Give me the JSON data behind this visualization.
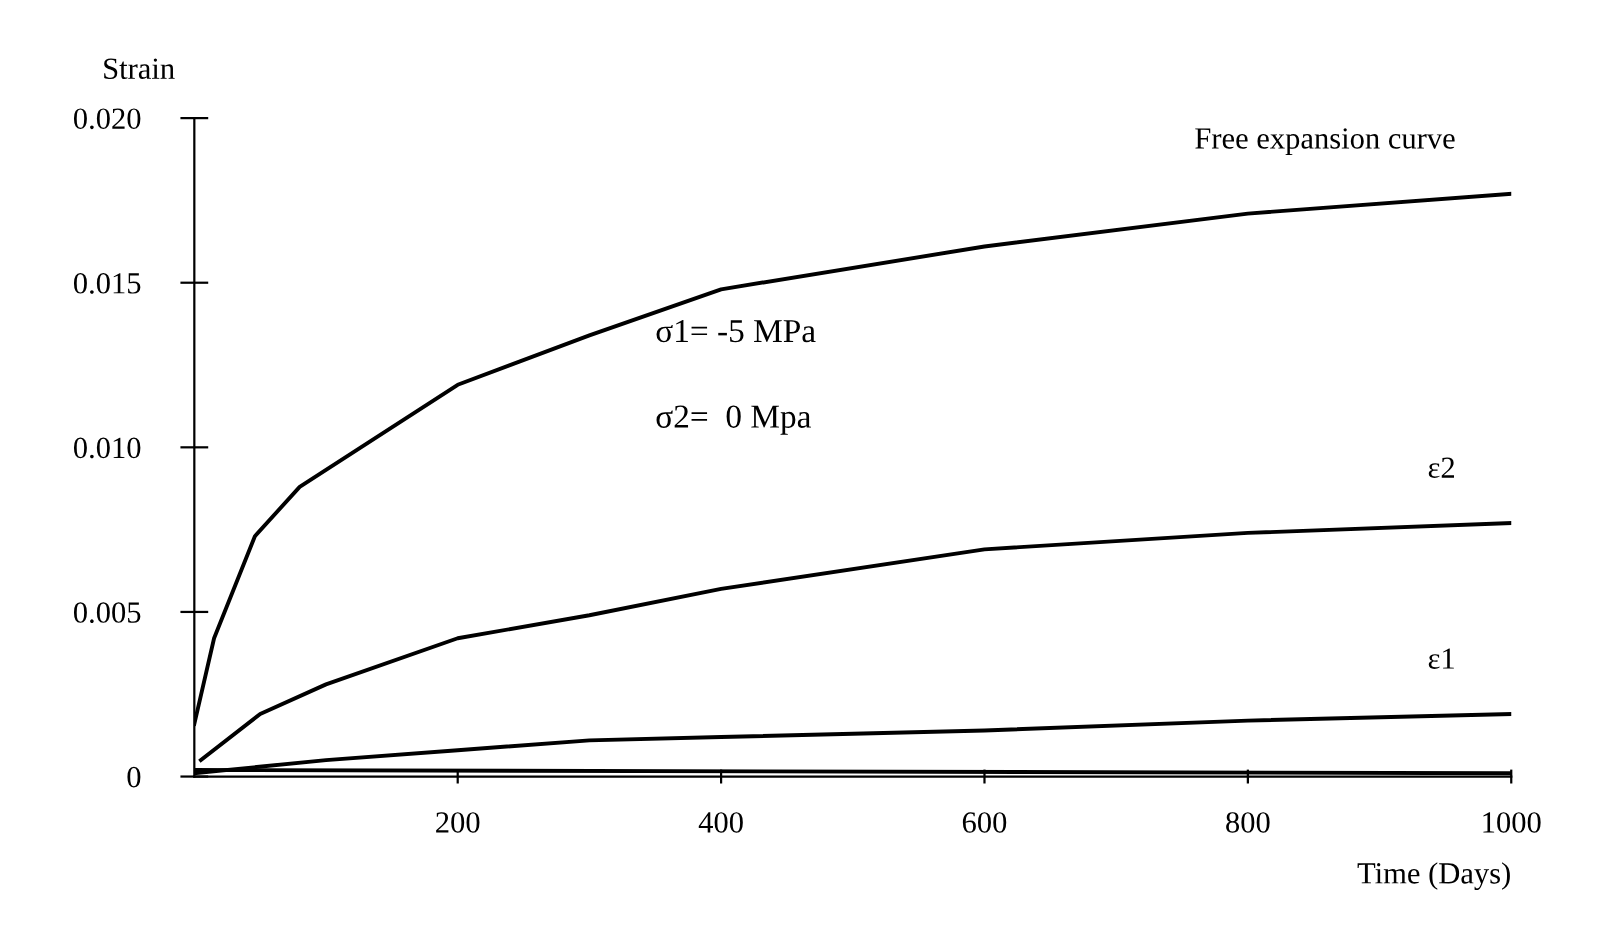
{
  "chart_data": {
    "type": "line",
    "xlabel": "Time (Days)",
    "ylabel": "Strain",
    "series": [
      {
        "name": "Free expansion curve",
        "color": "#000000",
        "x": [
          0,
          15,
          46,
          80,
          200,
          300,
          400,
          600,
          800,
          1000
        ],
        "values": [
          0.0016,
          0.0042,
          0.0073,
          0.0088,
          0.0119,
          0.0134,
          0.0148,
          0.0161,
          0.0171,
          0.0177
        ]
      },
      {
        "name": "ε2",
        "color": "#000000",
        "x": [
          5,
          50,
          100,
          200,
          300,
          400,
          600,
          800,
          1000
        ],
        "values": [
          0.0005,
          0.0019,
          0.0028,
          0.0042,
          0.0049,
          0.0057,
          0.0069,
          0.0074,
          0.0077
        ]
      },
      {
        "name": "ε1",
        "color": "#000000",
        "x": [
          0,
          100,
          200,
          300,
          400,
          600,
          800,
          1000
        ],
        "values": [
          0.0001,
          0.0005,
          0.0008,
          0.0011,
          0.0012,
          0.0014,
          0.0017,
          0.0019
        ]
      },
      {
        "color": "#000000",
        "x": [
          0,
          1000
        ],
        "values": [
          0.0002,
          0.0001
        ]
      }
    ],
    "annotations": [
      "σ1= -5 MPa",
      "σ2=  0 Mpa"
    ],
    "xlim": [
      0,
      1000
    ],
    "xticks": [
      200,
      400,
      600,
      800,
      1000
    ],
    "ylim": [
      0,
      0.02
    ],
    "yticks": [
      0,
      {
        "value": 0.005,
        "label": "0.005"
      },
      {
        "value": 0.01,
        "label": "0.010"
      },
      {
        "value": 0.015,
        "label": "0.015"
      },
      {
        "value": 0.02,
        "label": "0.020"
      }
    ],
    "grid": false,
    "legend": false,
    "marker": "none",
    "line_style": "solid"
  }
}
